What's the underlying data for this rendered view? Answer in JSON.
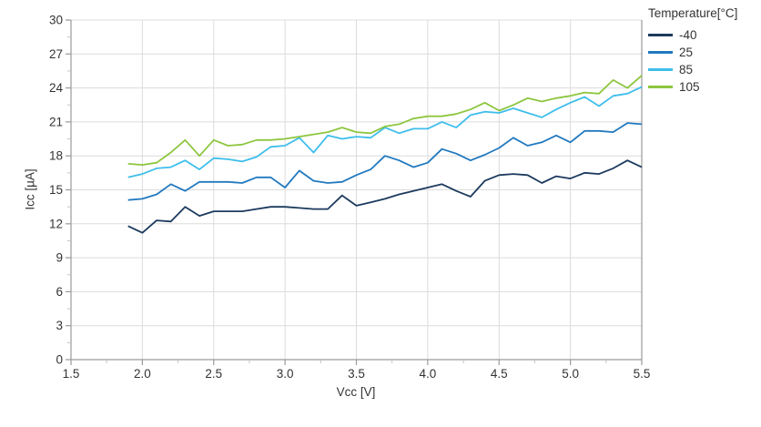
{
  "chart_data": {
    "type": "line",
    "xlabel": "Vcc [V]",
    "ylabel": "Icc [µA]",
    "xlim": [
      1.5,
      5.5
    ],
    "ylim": [
      0,
      30
    ],
    "grid": true,
    "legend_title": "Temperature[°C]",
    "legend_position": "top-right",
    "x_ticks": [
      1.5,
      2.0,
      2.5,
      3.0,
      3.5,
      4.0,
      4.5,
      5.0,
      5.5
    ],
    "x_tick_labels": [
      "1.5",
      "2.0",
      "2.5",
      "3.0",
      "3.5",
      "4.0",
      "4.5",
      "5.0",
      "5.5"
    ],
    "x_minor_ticks": [
      1.75,
      2.25,
      2.75,
      3.25,
      3.75,
      4.25,
      4.75,
      5.25
    ],
    "y_ticks": [
      0,
      3,
      6,
      9,
      12,
      15,
      18,
      21,
      24,
      27,
      30
    ],
    "y_tick_labels": [
      "0",
      "3",
      "6",
      "9",
      "12",
      "15",
      "18",
      "21",
      "24",
      "27",
      "30"
    ],
    "y_minor_ticks": [
      1.5,
      4.5,
      7.5,
      10.5,
      13.5,
      16.5,
      19.5,
      22.5,
      25.5,
      28.5
    ],
    "x": [
      1.9,
      2.0,
      2.1,
      2.2,
      2.3,
      2.4,
      2.5,
      2.6,
      2.7,
      2.8,
      2.9,
      3.0,
      3.1,
      3.2,
      3.3,
      3.4,
      3.5,
      3.6,
      3.7,
      3.8,
      3.9,
      4.0,
      4.1,
      4.2,
      4.3,
      4.4,
      4.5,
      4.6,
      4.7,
      4.8,
      4.9,
      5.0,
      5.1,
      5.2,
      5.3,
      5.4,
      5.5
    ],
    "series": [
      {
        "name": "-40",
        "color": "#1c3a5e",
        "values": [
          11.8,
          11.2,
          12.3,
          12.2,
          13.5,
          12.7,
          13.1,
          13.1,
          13.1,
          13.3,
          13.5,
          13.5,
          13.4,
          13.3,
          13.3,
          14.5,
          13.6,
          13.9,
          14.2,
          14.6,
          14.9,
          15.2,
          15.5,
          14.9,
          14.4,
          15.8,
          16.3,
          16.4,
          16.3,
          15.6,
          16.2,
          16.0,
          16.5,
          16.4,
          16.9,
          17.6,
          17.0
        ]
      },
      {
        "name": "25",
        "color": "#2179bf",
        "values": [
          14.1,
          14.2,
          14.6,
          15.5,
          14.9,
          15.7,
          15.7,
          15.7,
          15.6,
          16.1,
          16.1,
          15.2,
          16.7,
          15.8,
          15.6,
          15.7,
          16.3,
          16.8,
          18.0,
          17.6,
          17.0,
          17.4,
          18.6,
          18.2,
          17.6,
          18.1,
          18.7,
          19.6,
          18.9,
          19.2,
          19.8,
          19.2,
          20.2,
          20.2,
          20.1,
          20.9,
          20.8
        ]
      },
      {
        "name": "85",
        "color": "#3fbeeb",
        "values": [
          16.1,
          16.4,
          16.9,
          17.0,
          17.6,
          16.8,
          17.8,
          17.7,
          17.5,
          17.9,
          18.8,
          18.9,
          19.6,
          18.3,
          19.8,
          19.5,
          19.7,
          19.6,
          20.5,
          20.0,
          20.4,
          20.4,
          21.0,
          20.5,
          21.6,
          21.9,
          21.8,
          22.2,
          21.8,
          21.4,
          22.1,
          22.7,
          23.2,
          22.4,
          23.3,
          23.5,
          24.1
        ]
      },
      {
        "name": "105",
        "color": "#8dc63f",
        "values": [
          17.3,
          17.2,
          17.4,
          18.3,
          19.4,
          18.0,
          19.4,
          18.9,
          19.0,
          19.4,
          19.4,
          19.5,
          19.7,
          19.9,
          20.1,
          20.5,
          20.1,
          20.0,
          20.6,
          20.8,
          21.3,
          21.5,
          21.5,
          21.7,
          22.1,
          22.7,
          22.0,
          22.5,
          23.1,
          22.8,
          23.1,
          23.3,
          23.6,
          23.5,
          24.7,
          24.0,
          25.1
        ]
      }
    ]
  },
  "colors": {
    "grid": "#dcdcdc",
    "axis": "#9a9a9a",
    "minor_tick": "#c4c4c4",
    "text": "#333333"
  }
}
